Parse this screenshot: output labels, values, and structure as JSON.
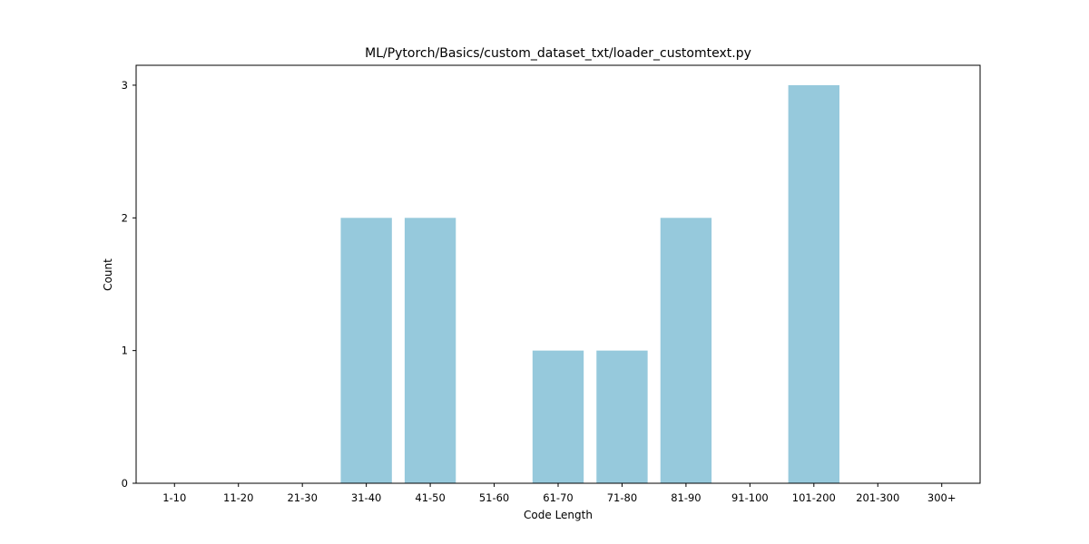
{
  "colors": {
    "bar": "#96c9dc",
    "axis": "#000000",
    "background": "#ffffff"
  },
  "chart_data": {
    "type": "bar",
    "title": "ML/Pytorch/Basics/custom_dataset_txt/loader_customtext.py",
    "xlabel": "Code Length",
    "ylabel": "Count",
    "categories": [
      "1-10",
      "11-20",
      "21-30",
      "31-40",
      "41-50",
      "51-60",
      "61-70",
      "71-80",
      "81-90",
      "91-100",
      "101-200",
      "201-300",
      "300+"
    ],
    "values": [
      0,
      0,
      0,
      2,
      2,
      0,
      1,
      1,
      2,
      0,
      3,
      0,
      0
    ],
    "yticks": [
      0,
      1,
      2,
      3
    ],
    "ylim": [
      0,
      3.15
    ],
    "grid": false,
    "legend": "none"
  }
}
